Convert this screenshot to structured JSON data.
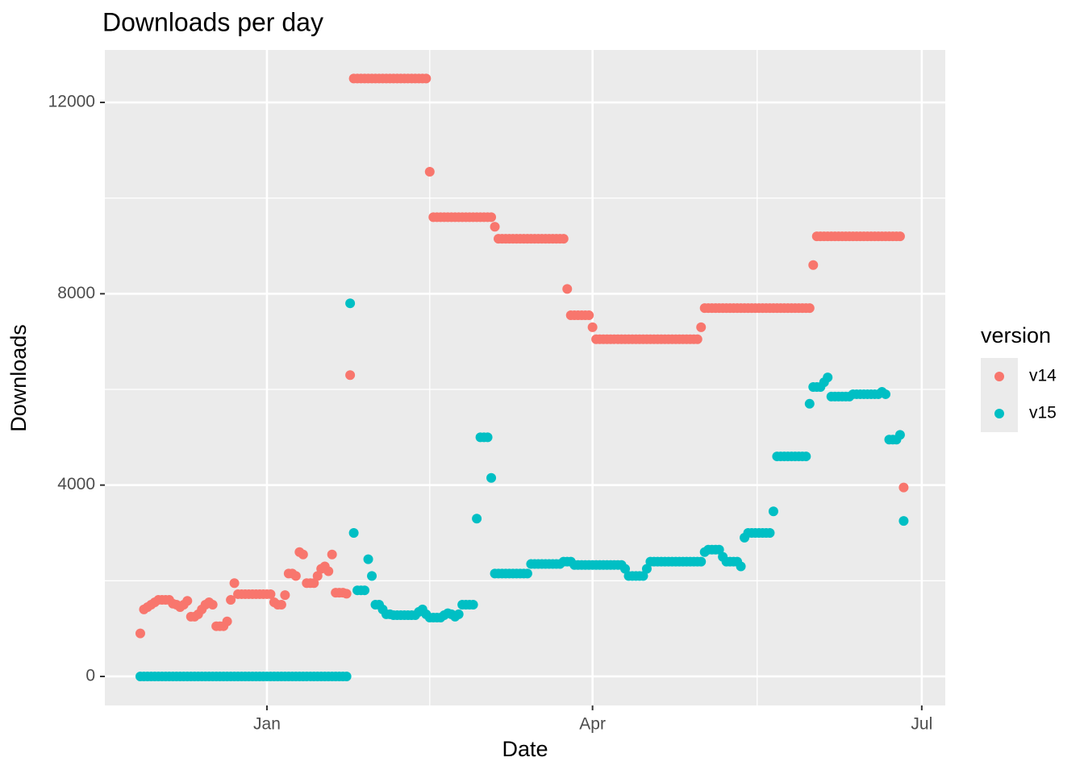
{
  "chart_data": {
    "type": "scatter",
    "title": "Downloads per day",
    "x_label": "Date",
    "y_label": "Downloads",
    "legend_title": "version",
    "legend_position": "right",
    "grid": true,
    "xlim": [
      -44.8,
      187.5
    ],
    "ylim": [
      -607,
      13096
    ],
    "xticks": [
      {
        "value": 0,
        "label": "Jan"
      },
      {
        "value": 90,
        "label": "Apr"
      },
      {
        "value": 181,
        "label": "Jul"
      }
    ],
    "yticks": [
      0,
      4000,
      8000,
      12000
    ],
    "xminor": [
      45,
      135.5
    ],
    "yminor": [
      2000,
      6000,
      10000
    ],
    "x": [
      -35,
      -34,
      -33,
      -32,
      -31,
      -30,
      -29,
      -28,
      -27,
      -26,
      -25,
      -24,
      -23,
      -22,
      -21,
      -20,
      -19,
      -18,
      -17,
      -16,
      -15,
      -14,
      -13,
      -12,
      -11,
      -10,
      -9,
      -8,
      -7,
      -6,
      -5,
      -4,
      -3,
      -2,
      -1,
      0,
      1,
      2,
      3,
      4,
      5,
      6,
      7,
      8,
      9,
      10,
      11,
      12,
      13,
      14,
      15,
      16,
      17,
      18,
      19,
      20,
      21,
      22,
      23,
      24,
      25,
      26,
      27,
      28,
      29,
      30,
      31,
      32,
      33,
      34,
      35,
      36,
      37,
      38,
      39,
      40,
      41,
      42,
      43,
      44,
      45,
      46,
      47,
      48,
      49,
      50,
      51,
      52,
      53,
      54,
      55,
      56,
      57,
      58,
      59,
      60,
      61,
      62,
      63,
      64,
      65,
      66,
      67,
      68,
      69,
      70,
      71,
      72,
      73,
      74,
      75,
      76,
      77,
      78,
      79,
      80,
      81,
      82,
      83,
      84,
      85,
      86,
      87,
      88,
      89,
      90,
      91,
      92,
      93,
      94,
      95,
      96,
      97,
      98,
      99,
      100,
      101,
      102,
      103,
      104,
      105,
      106,
      107,
      108,
      109,
      110,
      111,
      112,
      113,
      114,
      115,
      116,
      117,
      118,
      119,
      120,
      121,
      122,
      123,
      124,
      125,
      126,
      127,
      128,
      129,
      130,
      131,
      132,
      133,
      134,
      135,
      136,
      137,
      138,
      139,
      140,
      141,
      142,
      143,
      144,
      145,
      146,
      147,
      148,
      149,
      150,
      151,
      152,
      153,
      154,
      155,
      156,
      157,
      158,
      159,
      160,
      161,
      162,
      163,
      164,
      165,
      166,
      167,
      168,
      169,
      170,
      171,
      172,
      173,
      174,
      175,
      176
    ],
    "series": [
      {
        "name": "v14",
        "color": "#F8766D",
        "values": [
          900,
          1400,
          1450,
          1500,
          1550,
          1600,
          1600,
          1600,
          1600,
          1520,
          1500,
          1450,
          1500,
          1580,
          1250,
          1250,
          1300,
          1400,
          1500,
          1550,
          1500,
          1050,
          1050,
          1050,
          1150,
          1600,
          1950,
          1720,
          1720,
          1720,
          1720,
          1720,
          1720,
          1720,
          1720,
          1720,
          1720,
          1550,
          1500,
          1500,
          1700,
          2150,
          2150,
          2100,
          2600,
          2550,
          1950,
          1950,
          1950,
          2100,
          2250,
          2300,
          2200,
          2550,
          1750,
          1750,
          1750,
          1730,
          6300,
          12500,
          12500,
          12500,
          12500,
          12500,
          12500,
          12500,
          12500,
          12500,
          12500,
          12500,
          12500,
          12500,
          12500,
          12500,
          12500,
          12500,
          12500,
          12500,
          12500,
          12500,
          10550,
          9600,
          9600,
          9600,
          9600,
          9600,
          9600,
          9600,
          9600,
          9600,
          9600,
          9600,
          9600,
          9600,
          9600,
          9600,
          9600,
          9600,
          9400,
          9150,
          9150,
          9150,
          9150,
          9150,
          9150,
          9150,
          9150,
          9150,
          9150,
          9150,
          9150,
          9150,
          9150,
          9150,
          9150,
          9150,
          9150,
          9150,
          8100,
          7550,
          7550,
          7550,
          7550,
          7550,
          7550,
          7300,
          7050,
          7050,
          7050,
          7050,
          7050,
          7050,
          7050,
          7050,
          7050,
          7050,
          7050,
          7050,
          7050,
          7050,
          7050,
          7050,
          7050,
          7050,
          7050,
          7050,
          7050,
          7050,
          7050,
          7050,
          7050,
          7050,
          7050,
          7050,
          7050,
          7300,
          7700,
          7700,
          7700,
          7700,
          7700,
          7700,
          7700,
          7700,
          7700,
          7700,
          7700,
          7700,
          7700,
          7700,
          7700,
          7700,
          7700,
          7700,
          7700,
          7700,
          7700,
          7700,
          7700,
          7700,
          7700,
          7700,
          7700,
          7700,
          7700,
          7700,
          8600,
          9200,
          9200,
          9200,
          9200,
          9200,
          9200,
          9200,
          9200,
          9200,
          9200,
          9200,
          9200,
          9200,
          9200,
          9200,
          9200,
          9200,
          9200,
          9200,
          9200,
          9200,
          9200,
          9200,
          9200,
          3950
        ]
      },
      {
        "name": "v15",
        "color": "#00BFC4",
        "values": [
          0,
          0,
          0,
          0,
          0,
          0,
          0,
          0,
          0,
          0,
          0,
          0,
          0,
          0,
          0,
          0,
          0,
          0,
          0,
          0,
          0,
          0,
          0,
          0,
          0,
          0,
          0,
          0,
          0,
          0,
          0,
          0,
          0,
          0,
          0,
          0,
          0,
          0,
          0,
          0,
          0,
          0,
          0,
          0,
          0,
          0,
          0,
          0,
          0,
          0,
          0,
          0,
          0,
          0,
          0,
          0,
          0,
          0,
          7800,
          3000,
          1800,
          1800,
          1800,
          2450,
          2100,
          1500,
          1500,
          1400,
          1300,
          1300,
          1280,
          1280,
          1280,
          1280,
          1280,
          1280,
          1280,
          1350,
          1400,
          1300,
          1230,
          1230,
          1230,
          1230,
          1280,
          1320,
          1300,
          1250,
          1300,
          1500,
          1500,
          1500,
          1500,
          3300,
          5000,
          5000,
          5000,
          4150,
          2150,
          2150,
          2150,
          2150,
          2150,
          2150,
          2150,
          2150,
          2150,
          2150,
          2350,
          2350,
          2350,
          2350,
          2350,
          2350,
          2350,
          2350,
          2350,
          2400,
          2400,
          2400,
          2330,
          2330,
          2330,
          2330,
          2330,
          2330,
          2330,
          2330,
          2330,
          2330,
          2330,
          2330,
          2330,
          2330,
          2250,
          2100,
          2100,
          2100,
          2100,
          2100,
          2250,
          2400,
          2400,
          2400,
          2400,
          2400,
          2400,
          2400,
          2400,
          2400,
          2400,
          2400,
          2400,
          2400,
          2400,
          2400,
          2600,
          2650,
          2650,
          2650,
          2650,
          2500,
          2400,
          2400,
          2400,
          2400,
          2300,
          2900,
          3000,
          3000,
          3000,
          3000,
          3000,
          3000,
          3000,
          3450,
          4600,
          4600,
          4600,
          4600,
          4600,
          4600,
          4600,
          4600,
          4600,
          5700,
          6050,
          6050,
          6050,
          6150,
          6250,
          5850,
          5850,
          5850,
          5850,
          5850,
          5850,
          5900,
          5900,
          5900,
          5900,
          5900,
          5900,
          5900,
          5900,
          5950,
          5900,
          4950,
          4950,
          4950,
          5050,
          3250
        ]
      }
    ]
  }
}
